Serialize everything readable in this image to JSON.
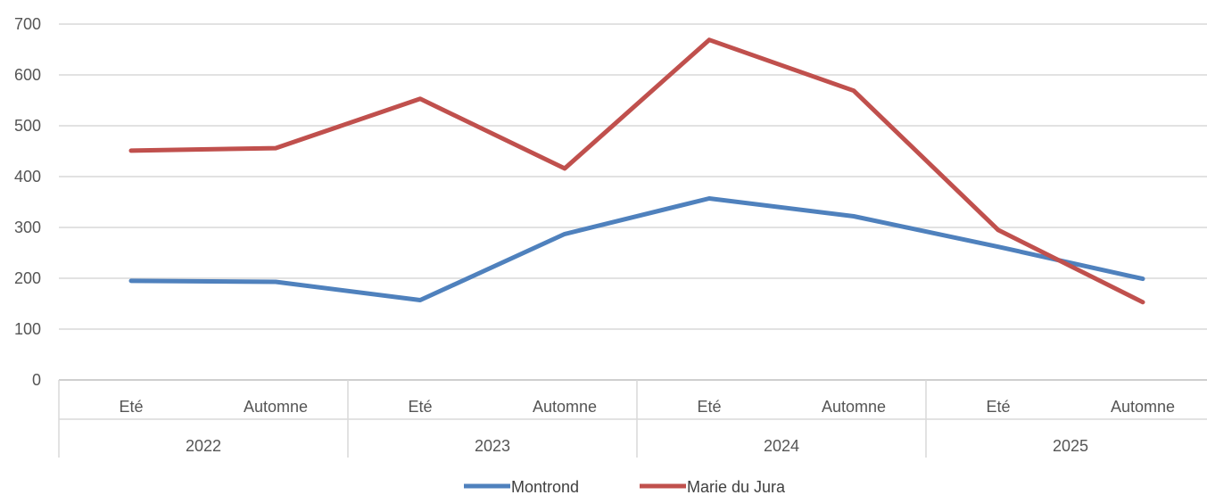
{
  "chart_data": {
    "type": "line",
    "categories": [
      {
        "season": "Eté",
        "year": "2022"
      },
      {
        "season": "Automne",
        "year": "2022"
      },
      {
        "season": "Eté",
        "year": "2023"
      },
      {
        "season": "Automne",
        "year": "2023"
      },
      {
        "season": "Eté",
        "year": "2024"
      },
      {
        "season": "Automne",
        "year": "2024"
      },
      {
        "season": "Eté",
        "year": "2025"
      },
      {
        "season": "Automne",
        "year": "2025"
      }
    ],
    "years": [
      "2022",
      "2023",
      "2024",
      "2025"
    ],
    "series": [
      {
        "name": "Montrond",
        "color": "#4F81BD",
        "values": [
          195,
          193,
          157,
          287,
          357,
          322,
          262,
          199
        ]
      },
      {
        "name": "Marie du Jura",
        "color": "#C0504D",
        "values": [
          451,
          456,
          553,
          416,
          669,
          569,
          295,
          153
        ]
      }
    ],
    "title": "",
    "xlabel": "",
    "ylabel": "",
    "ylim": [
      0,
      700
    ],
    "yticks": [
      0,
      100,
      200,
      300,
      400,
      500,
      600,
      700
    ],
    "grid": true,
    "legend": "bottom-center"
  }
}
